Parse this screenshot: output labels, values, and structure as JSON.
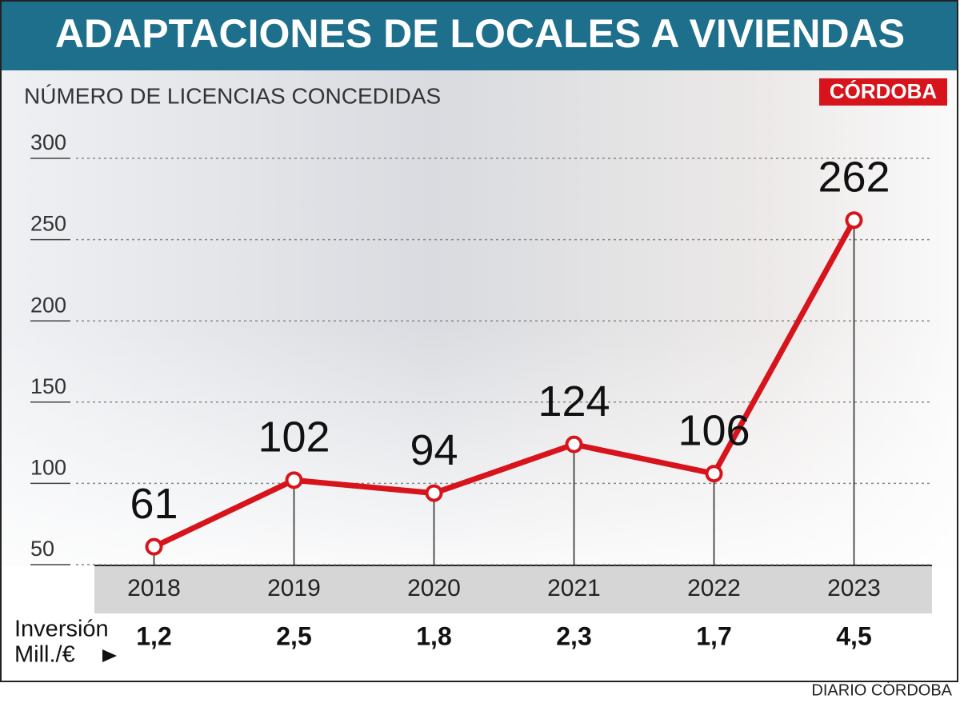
{
  "chart_data": {
    "type": "line",
    "title": "ADAPTACIONES DE LOCALES A VIVIENDAS",
    "subtitle": "NÚMERO DE LICENCIAS CONCEDIDAS",
    "badge": "CÓRDOBA",
    "categories": [
      "2018",
      "2019",
      "2020",
      "2021",
      "2022",
      "2023"
    ],
    "values": [
      61,
      102,
      94,
      124,
      106,
      262
    ],
    "color": "#d7141c",
    "ylim": [
      50,
      300
    ],
    "yticks": [
      50,
      100,
      150,
      200,
      250,
      300
    ],
    "grid": true,
    "investment": {
      "label_lines": [
        "Inversión",
        "Mill./€"
      ],
      "values": [
        1.2,
        2.5,
        1.8,
        2.3,
        1.7,
        4.5
      ],
      "value_labels": [
        "1,2",
        "2,5",
        "1,8",
        "2,3",
        "1,7",
        "4,5"
      ]
    },
    "source": "DIARIO CÓRDOBA"
  }
}
